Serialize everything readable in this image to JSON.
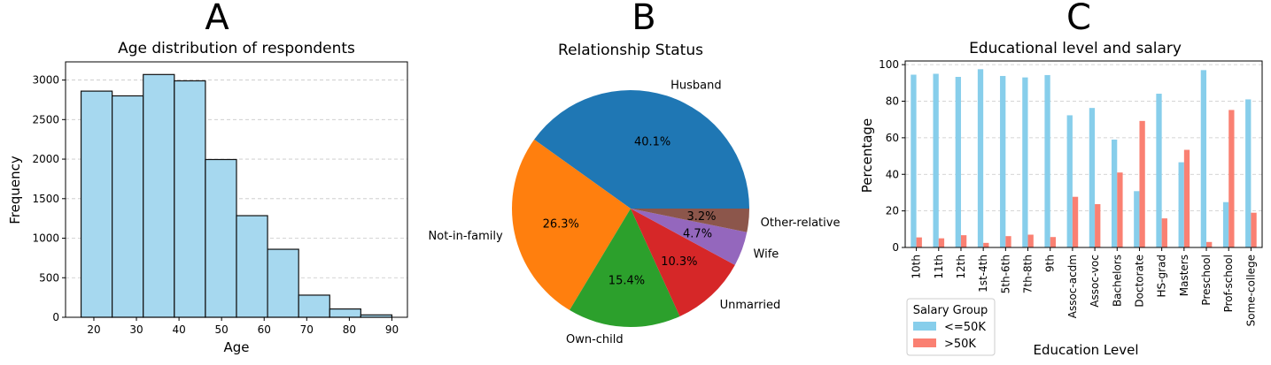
{
  "panels": {
    "a": "A",
    "b": "B",
    "c": "C"
  },
  "chart_data": [
    {
      "type": "bar",
      "title": "Age distribution of respondents",
      "xlabel": "Age",
      "ylabel": "Frequency",
      "bins": [
        {
          "x0": 17,
          "x1": 24.3,
          "value": 2860
        },
        {
          "x0": 24.3,
          "x1": 31.6,
          "value": 2800
        },
        {
          "x0": 31.6,
          "x1": 38.9,
          "value": 3070
        },
        {
          "x0": 38.9,
          "x1": 46.2,
          "value": 2990
        },
        {
          "x0": 46.2,
          "x1": 53.5,
          "value": 1995
        },
        {
          "x0": 53.5,
          "x1": 60.8,
          "value": 1285
        },
        {
          "x0": 60.8,
          "x1": 68.1,
          "value": 860
        },
        {
          "x0": 68.1,
          "x1": 75.4,
          "value": 280
        },
        {
          "x0": 75.4,
          "x1": 82.7,
          "value": 105
        },
        {
          "x0": 82.7,
          "x1": 90,
          "value": 30
        }
      ],
      "xlim": [
        13.35,
        93.65
      ],
      "ylim": [
        0,
        3230
      ],
      "xticks": [
        20,
        30,
        40,
        50,
        60,
        70,
        80,
        90
      ],
      "yticks": [
        0,
        500,
        1000,
        1500,
        2000,
        2500,
        3000
      ],
      "grid": "y",
      "colors": {
        "fill": "#a6d8ef",
        "edge": "#111111"
      }
    },
    {
      "type": "pie",
      "title": "Relationship Status",
      "slices": [
        {
          "label": "Husband",
          "value": 40.1,
          "pct": "40.1%",
          "color": "#1f77b4"
        },
        {
          "label": "Not-in-family",
          "value": 26.3,
          "pct": "26.3%",
          "color": "#ff7f0e"
        },
        {
          "label": "Own-child",
          "value": 15.4,
          "pct": "15.4%",
          "color": "#2ca02c"
        },
        {
          "label": "Unmarried",
          "value": 10.3,
          "pct": "10.3%",
          "color": "#d62728"
        },
        {
          "label": "Wife",
          "value": 4.7,
          "pct": "4.7%",
          "color": "#9467bd"
        },
        {
          "label": "Other-relative",
          "value": 3.2,
          "pct": "3.2%",
          "color": "#8c564b"
        }
      ]
    },
    {
      "type": "bar",
      "title": "Educational level and salary",
      "xlabel": "Education Level",
      "ylabel": "Percentage",
      "categories": [
        "10th",
        "11th",
        "12th",
        "1st-4th",
        "5th-6th",
        "7th-8th",
        "9th",
        "Assoc-acdm",
        "Assoc-voc",
        "Bachelors",
        "Doctorate",
        "HS-grad",
        "Masters",
        "Preschool",
        "Prof-school",
        "Some-college"
      ],
      "series": [
        {
          "name": "<=50K",
          "color": "#87ceeb",
          "values": [
            94.5,
            95,
            93.3,
            97.5,
            93.8,
            93,
            94.3,
            72.3,
            76.3,
            59,
            30.8,
            84.1,
            46.6,
            97,
            24.8,
            81
          ]
        },
        {
          "name": ">50K",
          "color": "#fa8072",
          "values": [
            5.5,
            5,
            6.7,
            2.5,
            6.2,
            7,
            5.7,
            27.7,
            23.7,
            41,
            69.2,
            15.9,
            53.4,
            3,
            75.2,
            19
          ]
        }
      ],
      "ylim": [
        0,
        102
      ],
      "yticks": [
        0,
        20,
        40,
        60,
        80,
        100
      ],
      "grid": "y",
      "legend": {
        "title": "Salary Group",
        "placement": "bottom-left"
      }
    }
  ]
}
